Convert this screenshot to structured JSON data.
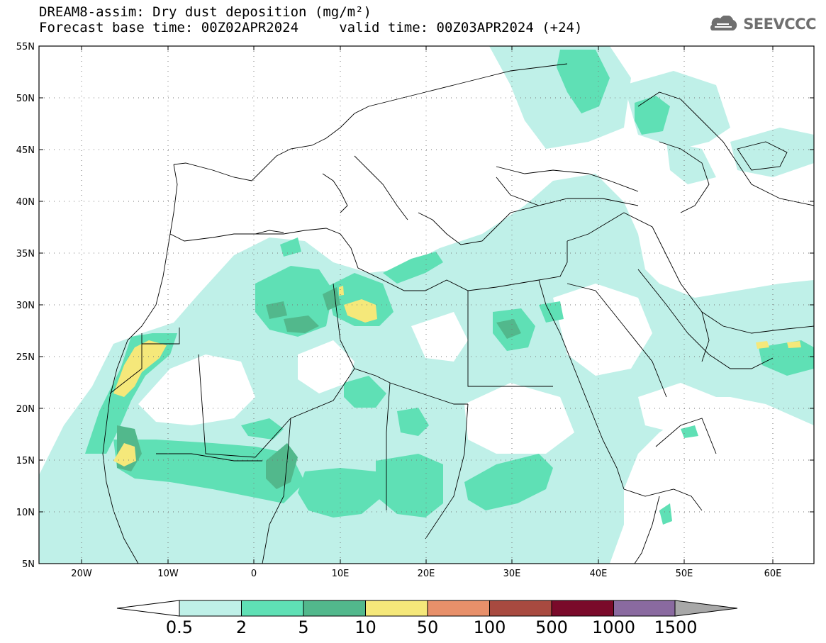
{
  "header": {
    "title_line1": "DREAM8-assim: Dry dust deposition (mg/m²)",
    "title_line2": "Forecast base time: 00Z02APR2024     valid time: 00Z03APR2024 (+24)",
    "logo_text": "SEEVCCC",
    "logo_icon": "cloud-icon",
    "logo_color": "#6f6f6f"
  },
  "map": {
    "lon_ticks": [
      "20W",
      "10W",
      "0",
      "10E",
      "20E",
      "30E",
      "40E",
      "50E",
      "60E"
    ],
    "lat_ticks": [
      "55N",
      "50N",
      "45N",
      "40N",
      "35N",
      "30N",
      "25N",
      "20N",
      "15N",
      "10N",
      "5N"
    ]
  },
  "colorbar": {
    "labels": [
      "0.5",
      "2",
      "5",
      "10",
      "50",
      "100",
      "500",
      "1000",
      "1500"
    ],
    "colors": [
      "#bff0e8",
      "#5fe0b5",
      "#52b88c",
      "#f5e87a",
      "#e8906a",
      "#a84a40",
      "#7a0a2a",
      "#8a6aa0",
      "#a8a8a8"
    ],
    "under_color": "#ffffff",
    "over_color": "#a8a8a8"
  }
}
